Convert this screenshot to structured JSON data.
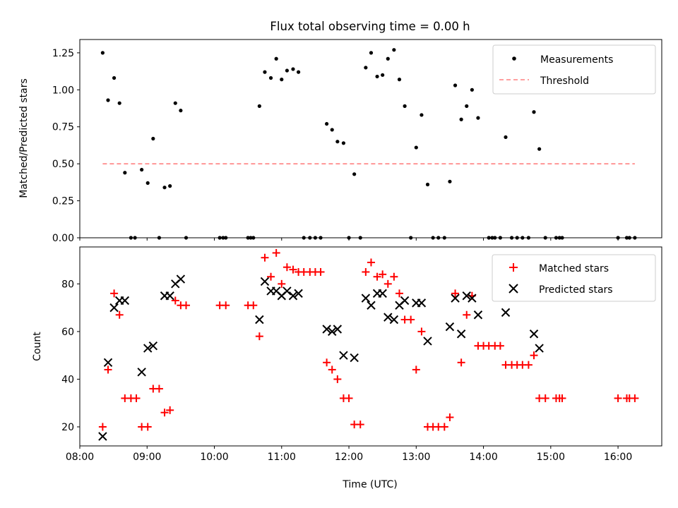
{
  "chart_data": [
    {
      "type": "scatter",
      "title": "Flux total observing time = 0.00 h",
      "xlabel": "",
      "ylabel": "Matched/Predicted stars",
      "xlim_hours": [
        8.0,
        16.65
      ],
      "ylim": [
        0,
        1.34
      ],
      "y_ticks": [
        0.0,
        0.25,
        0.5,
        0.75,
        1.0,
        1.25
      ],
      "y_tick_labels": [
        "0.00",
        "0.25",
        "0.50",
        "0.75",
        "1.00",
        "1.25"
      ],
      "legend_position": "upper right",
      "series": [
        {
          "name": "Measurements",
          "marker": "dot",
          "color": "#000000",
          "points": [
            [
              8.34,
              1.25
            ],
            [
              8.42,
              0.93
            ],
            [
              8.51,
              1.08
            ],
            [
              8.59,
              0.91
            ],
            [
              8.67,
              0.44
            ],
            [
              8.76,
              0
            ],
            [
              8.82,
              0
            ],
            [
              8.92,
              0.46
            ],
            [
              9.01,
              0.37
            ],
            [
              9.09,
              0.67
            ],
            [
              9.18,
              0
            ],
            [
              9.26,
              0.34
            ],
            [
              9.34,
              0.35
            ],
            [
              9.42,
              0.91
            ],
            [
              9.5,
              0.86
            ],
            [
              9.58,
              0
            ],
            [
              10.08,
              0
            ],
            [
              10.13,
              0
            ],
            [
              10.17,
              0
            ],
            [
              10.5,
              0
            ],
            [
              10.54,
              0
            ],
            [
              10.58,
              0
            ],
            [
              10.67,
              0.89
            ],
            [
              10.75,
              1.12
            ],
            [
              10.84,
              1.08
            ],
            [
              10.92,
              1.21
            ],
            [
              11.0,
              1.07
            ],
            [
              11.08,
              1.13
            ],
            [
              11.17,
              1.14
            ],
            [
              11.25,
              1.12
            ],
            [
              11.33,
              0
            ],
            [
              11.42,
              0
            ],
            [
              11.5,
              0
            ],
            [
              11.58,
              0
            ],
            [
              11.67,
              0.77
            ],
            [
              11.75,
              0.73
            ],
            [
              11.83,
              0.65
            ],
            [
              11.92,
              0.64
            ],
            [
              12.0,
              0
            ],
            [
              12.08,
              0.43
            ],
            [
              12.17,
              0
            ],
            [
              12.25,
              1.15
            ],
            [
              12.33,
              1.25
            ],
            [
              12.42,
              1.09
            ],
            [
              12.5,
              1.1
            ],
            [
              12.58,
              1.21
            ],
            [
              12.67,
              1.27
            ],
            [
              12.75,
              1.07
            ],
            [
              12.83,
              0.89
            ],
            [
              12.92,
              0
            ],
            [
              13.0,
              0.61
            ],
            [
              13.08,
              0.83
            ],
            [
              13.17,
              0.36
            ],
            [
              13.25,
              0
            ],
            [
              13.33,
              0
            ],
            [
              13.42,
              0
            ],
            [
              13.5,
              0.38
            ],
            [
              13.58,
              1.03
            ],
            [
              13.67,
              0.8
            ],
            [
              13.75,
              0.89
            ],
            [
              13.83,
              1.0
            ],
            [
              13.92,
              0.81
            ],
            [
              14.08,
              0
            ],
            [
              14.13,
              0
            ],
            [
              14.17,
              0
            ],
            [
              14.25,
              0
            ],
            [
              14.33,
              0.68
            ],
            [
              14.42,
              0
            ],
            [
              14.5,
              0
            ],
            [
              14.58,
              0
            ],
            [
              14.67,
              0
            ],
            [
              14.75,
              0.85
            ],
            [
              14.83,
              0.6
            ],
            [
              14.92,
              0
            ],
            [
              15.08,
              0
            ],
            [
              15.13,
              0
            ],
            [
              15.17,
              0
            ],
            [
              16.0,
              0
            ],
            [
              16.13,
              0
            ],
            [
              16.17,
              0
            ],
            [
              16.25,
              0
            ]
          ]
        },
        {
          "name": "Threshold",
          "type": "line",
          "style": "dashed",
          "color": "#ff8080",
          "x": [
            8.34,
            16.25
          ],
          "y": [
            0.5,
            0.5
          ]
        }
      ]
    },
    {
      "type": "scatter",
      "title": "",
      "xlabel": "Time (UTC)",
      "ylabel": "Count",
      "xlim_hours": [
        8.0,
        16.65
      ],
      "ylim": [
        12,
        95.5
      ],
      "y_ticks": [
        20,
        40,
        60,
        80
      ],
      "y_tick_labels": [
        "20",
        "40",
        "60",
        "80"
      ],
      "x_ticks_hours": [
        8,
        9,
        10,
        11,
        12,
        13,
        14,
        15,
        16
      ],
      "x_tick_labels": [
        "08:00",
        "09:00",
        "10:00",
        "11:00",
        "12:00",
        "13:00",
        "14:00",
        "15:00",
        "16:00"
      ],
      "legend_position": "upper right",
      "series": [
        {
          "name": "Matched stars",
          "marker": "plus",
          "color": "#ff0000",
          "points": [
            [
              8.34,
              20
            ],
            [
              8.42,
              44
            ],
            [
              8.51,
              76
            ],
            [
              8.59,
              67
            ],
            [
              8.67,
              32
            ],
            [
              8.76,
              32
            ],
            [
              8.84,
              32
            ],
            [
              8.92,
              20
            ],
            [
              9.01,
              20
            ],
            [
              9.09,
              36
            ],
            [
              9.18,
              36
            ],
            [
              9.26,
              26
            ],
            [
              9.34,
              27
            ],
            [
              9.42,
              73
            ],
            [
              9.5,
              71
            ],
            [
              9.58,
              71
            ],
            [
              10.08,
              71
            ],
            [
              10.17,
              71
            ],
            [
              10.5,
              71
            ],
            [
              10.58,
              71
            ],
            [
              10.67,
              58
            ],
            [
              10.75,
              91
            ],
            [
              10.84,
              83
            ],
            [
              10.92,
              93
            ],
            [
              11.0,
              80
            ],
            [
              11.08,
              87
            ],
            [
              11.17,
              86
            ],
            [
              11.25,
              85
            ],
            [
              11.33,
              85
            ],
            [
              11.42,
              85
            ],
            [
              11.5,
              85
            ],
            [
              11.58,
              85
            ],
            [
              11.67,
              47
            ],
            [
              11.75,
              44
            ],
            [
              11.83,
              40
            ],
            [
              11.92,
              32
            ],
            [
              12.0,
              32
            ],
            [
              12.08,
              21
            ],
            [
              12.17,
              21
            ],
            [
              12.25,
              85
            ],
            [
              12.33,
              89
            ],
            [
              12.42,
              83
            ],
            [
              12.5,
              84
            ],
            [
              12.58,
              80
            ],
            [
              12.67,
              83
            ],
            [
              12.75,
              76
            ],
            [
              12.83,
              65
            ],
            [
              12.92,
              65
            ],
            [
              13.0,
              44
            ],
            [
              13.08,
              60
            ],
            [
              13.17,
              20
            ],
            [
              13.25,
              20
            ],
            [
              13.33,
              20
            ],
            [
              13.42,
              20
            ],
            [
              13.5,
              24
            ],
            [
              13.58,
              76
            ],
            [
              13.67,
              47
            ],
            [
              13.75,
              67
            ],
            [
              13.83,
              75
            ],
            [
              13.92,
              54
            ],
            [
              14.0,
              54
            ],
            [
              14.08,
              54
            ],
            [
              14.17,
              54
            ],
            [
              14.25,
              54
            ],
            [
              14.33,
              46
            ],
            [
              14.42,
              46
            ],
            [
              14.5,
              46
            ],
            [
              14.58,
              46
            ],
            [
              14.67,
              46
            ],
            [
              14.75,
              50
            ],
            [
              14.83,
              32
            ],
            [
              14.92,
              32
            ],
            [
              15.08,
              32
            ],
            [
              15.13,
              32
            ],
            [
              15.17,
              32
            ],
            [
              16.0,
              32
            ],
            [
              16.13,
              32
            ],
            [
              16.17,
              32
            ],
            [
              16.25,
              32
            ]
          ]
        },
        {
          "name": "Predicted stars",
          "marker": "x",
          "color": "#000000",
          "points": [
            [
              8.34,
              16
            ],
            [
              8.42,
              47
            ],
            [
              8.51,
              70
            ],
            [
              8.59,
              73
            ],
            [
              8.67,
              73
            ],
            [
              8.92,
              43
            ],
            [
              9.01,
              53
            ],
            [
              9.09,
              54
            ],
            [
              9.26,
              75
            ],
            [
              9.34,
              75
            ],
            [
              9.42,
              80
            ],
            [
              9.5,
              82
            ],
            [
              10.67,
              65
            ],
            [
              10.75,
              81
            ],
            [
              10.84,
              77
            ],
            [
              10.92,
              77
            ],
            [
              11.0,
              75
            ],
            [
              11.08,
              77
            ],
            [
              11.17,
              75
            ],
            [
              11.25,
              76
            ],
            [
              11.67,
              61
            ],
            [
              11.75,
              60
            ],
            [
              11.83,
              61
            ],
            [
              11.92,
              50
            ],
            [
              12.08,
              49
            ],
            [
              12.25,
              74
            ],
            [
              12.33,
              71
            ],
            [
              12.42,
              76
            ],
            [
              12.5,
              76
            ],
            [
              12.58,
              66
            ],
            [
              12.67,
              65
            ],
            [
              12.75,
              71
            ],
            [
              12.83,
              73
            ],
            [
              13.0,
              72
            ],
            [
              13.08,
              72
            ],
            [
              13.17,
              56
            ],
            [
              13.5,
              62
            ],
            [
              13.58,
              74
            ],
            [
              13.67,
              59
            ],
            [
              13.75,
              75
            ],
            [
              13.83,
              74
            ],
            [
              13.92,
              67
            ],
            [
              14.33,
              68
            ],
            [
              14.75,
              59
            ],
            [
              14.83,
              53
            ]
          ]
        }
      ]
    }
  ]
}
